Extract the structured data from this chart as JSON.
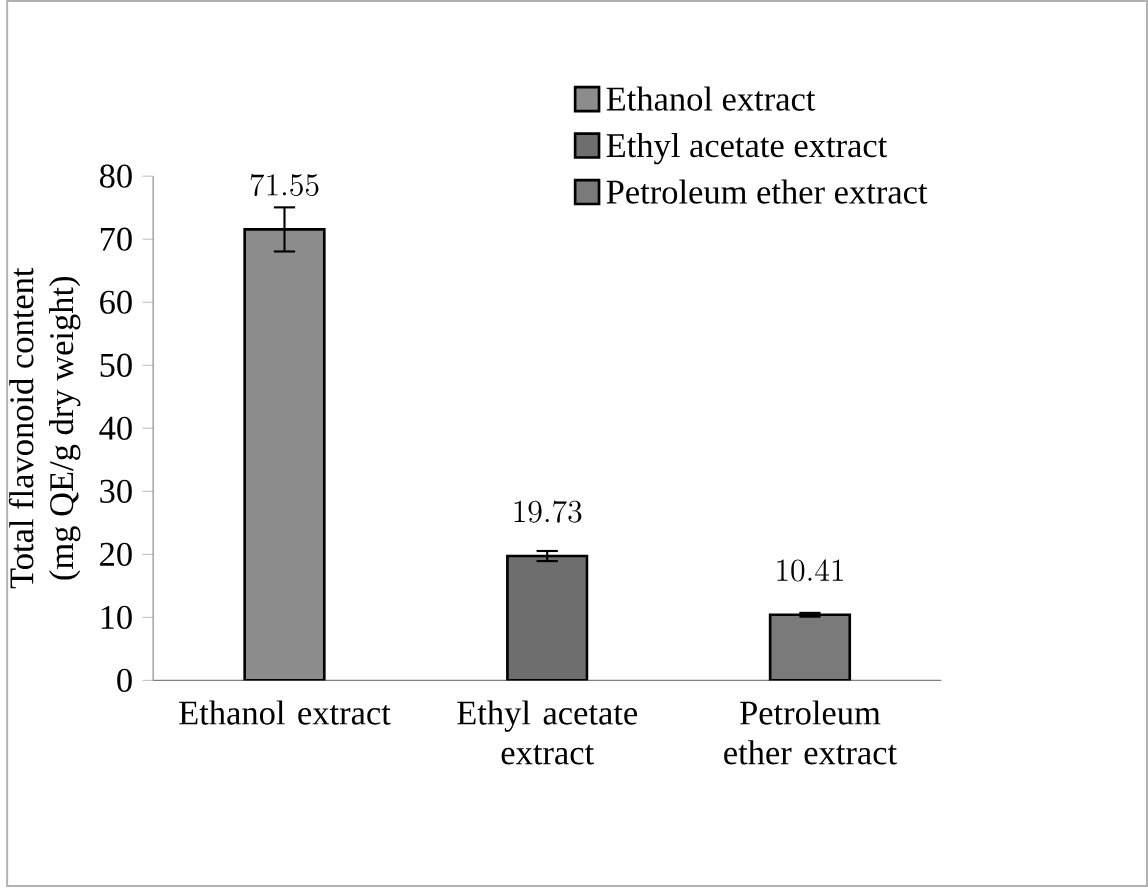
{
  "chart_data": {
    "type": "bar",
    "ylabel": "Total flavonoid content\n(mg QE/g dry weight)",
    "categories": [
      "Ethanol extract",
      "Ethyl acetate extract",
      "Petroleum ether extract"
    ],
    "series": [
      {
        "name": "Ethanol extract",
        "color": "#8c8c8c",
        "values": [
          71.55,
          null,
          null
        ],
        "errors": [
          3.5,
          null,
          null
        ]
      },
      {
        "name": "Ethyl acetate extract",
        "color": "#6e6e6e",
        "values": [
          null,
          19.73,
          null
        ],
        "errors": [
          null,
          0.8,
          null
        ]
      },
      {
        "name": "Petroleum ether extract",
        "color": "#7a7a7a",
        "values": [
          null,
          null,
          10.41
        ],
        "errors": [
          null,
          null,
          0.3
        ]
      }
    ],
    "ylim": [
      0,
      80
    ],
    "yticks": [
      0,
      10,
      20,
      30,
      40,
      50,
      60,
      70,
      80
    ],
    "data_labels": true,
    "legend": "top right",
    "grid": false
  }
}
